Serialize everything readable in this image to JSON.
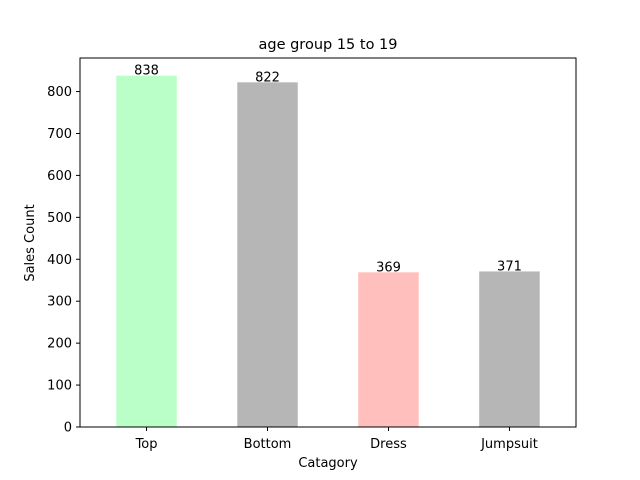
{
  "chart_data": {
    "type": "bar",
    "title": "age group 15 to 19",
    "xlabel": "Catagory",
    "ylabel": "Sales Count",
    "categories": [
      "Top",
      "Bottom",
      "Dress",
      "Jumpsuit"
    ],
    "values": [
      838,
      822,
      369,
      371
    ],
    "data_labels": [
      "838",
      "822",
      "369",
      "371"
    ],
    "bar_colors": [
      "#bbffc8",
      "#b7b6b6",
      "#ffc0bd",
      "#b7b6b6"
    ],
    "ylim": [
      0,
      880
    ],
    "yticks": [
      0,
      100,
      200,
      300,
      400,
      500,
      600,
      700,
      800
    ],
    "grid": false,
    "legend": "none"
  }
}
